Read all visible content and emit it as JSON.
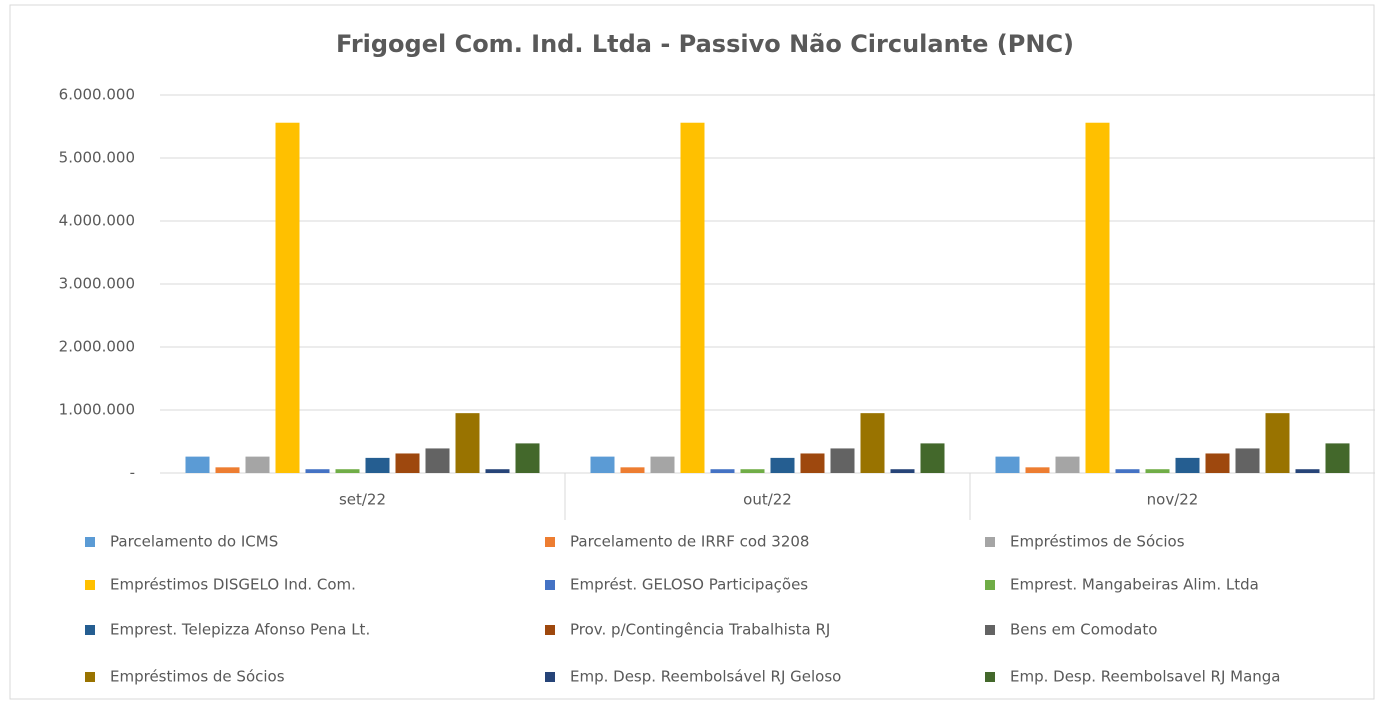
{
  "chart_data": {
    "type": "bar",
    "title": "Frigogel Com. Ind. Ltda - Passivo Não Circulante (PNC)",
    "categories": [
      "set/22",
      "out/22",
      "nov/22"
    ],
    "ylim": [
      0,
      6000000
    ],
    "yticks": [
      {
        "value": 0,
        "label": "-"
      },
      {
        "value": 1000000,
        "label": "1.000.000"
      },
      {
        "value": 2000000,
        "label": "2.000.000"
      },
      {
        "value": 3000000,
        "label": "3.000.000"
      },
      {
        "value": 4000000,
        "label": "4.000.000"
      },
      {
        "value": 5000000,
        "label": "5.000.000"
      },
      {
        "value": 6000000,
        "label": "6.000.000"
      }
    ],
    "grid": true,
    "legend": "bottom",
    "series": [
      {
        "name": "Parcelamento do ICMS",
        "color": "#5b9bd5",
        "values": [
          260000,
          260000,
          260000
        ]
      },
      {
        "name": "Parcelamento de IRRF cod 3208",
        "color": "#ed7d31",
        "values": [
          90000,
          90000,
          90000
        ]
      },
      {
        "name": "Empréstimos de Sócios",
        "color": "#a5a5a5",
        "values": [
          260000,
          260000,
          260000
        ]
      },
      {
        "name": "Empréstimos DISGELO Ind. Com.",
        "color": "#ffc000",
        "values": [
          5560000,
          5560000,
          5560000
        ]
      },
      {
        "name": "Emprést. GELOSO Participações",
        "color": "#4472c4",
        "values": [
          60000,
          60000,
          60000
        ]
      },
      {
        "name": "Emprest. Mangabeiras Alim. Ltda",
        "color": "#70ad47",
        "values": [
          60000,
          60000,
          60000
        ]
      },
      {
        "name": "Emprest. Telepizza Afonso Pena Lt.",
        "color": "#255e91",
        "values": [
          240000,
          240000,
          240000
        ]
      },
      {
        "name": "Prov. p/Contingência Trabalhista RJ",
        "color": "#9e480e",
        "values": [
          310000,
          310000,
          310000
        ]
      },
      {
        "name": "Bens em Comodato",
        "color": "#636363",
        "values": [
          390000,
          390000,
          390000
        ]
      },
      {
        "name": "Empréstimos de Sócios",
        "color": "#997300",
        "values": [
          950000,
          950000,
          950000
        ]
      },
      {
        "name": "Emp. Desp. Reembolsável RJ Geloso",
        "color": "#264478",
        "values": [
          60000,
          60000,
          60000
        ]
      },
      {
        "name": "Emp. Desp. Reembolsavel RJ Manga",
        "color": "#43682b",
        "values": [
          470000,
          470000,
          470000
        ]
      }
    ]
  }
}
